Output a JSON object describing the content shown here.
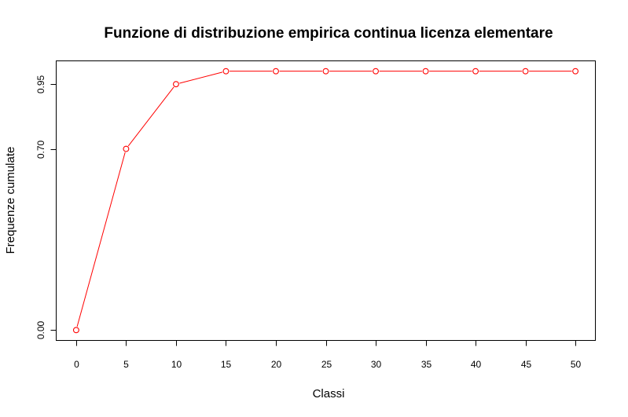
{
  "chart_data": {
    "type": "line",
    "title": "Funzione di distribuzione empirica continua licenza elementare",
    "xlabel": "Classi",
    "ylabel": "Frequenze cumulate",
    "x_ticks": [
      "0",
      "5",
      "10",
      "15",
      "20",
      "25",
      "30",
      "35",
      "40",
      "45",
      "50"
    ],
    "y_ticks": [
      "0.00",
      "0.70",
      "0.95"
    ],
    "xlim": [
      -2,
      52
    ],
    "ylim": [
      -0.04,
      1.04
    ],
    "grid": false,
    "legend": "none",
    "series": [
      {
        "color": "#ff0000",
        "x": [
          0,
          5,
          10,
          15,
          20,
          25,
          30,
          35,
          40,
          45,
          50
        ],
        "y": [
          0.0,
          0.7,
          0.95,
          1.0,
          1.0,
          1.0,
          1.0,
          1.0,
          1.0,
          1.0,
          1.0
        ]
      }
    ]
  }
}
